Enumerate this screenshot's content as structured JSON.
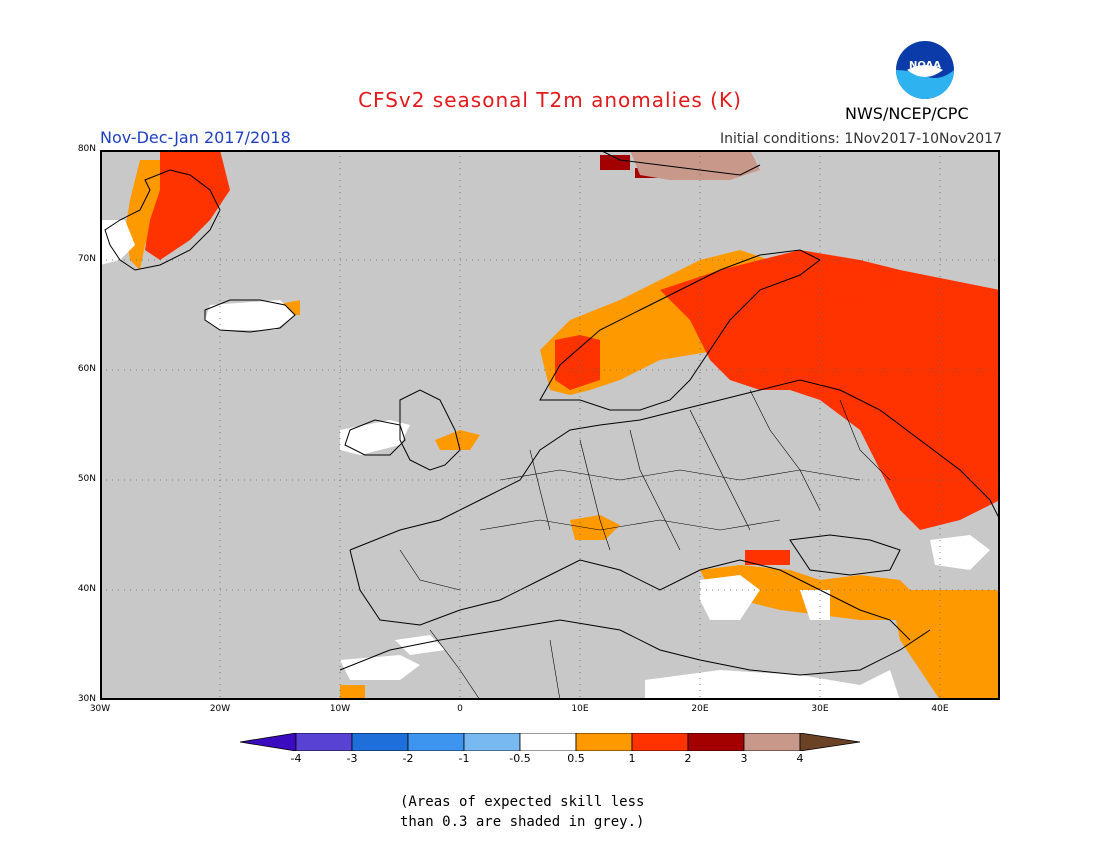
{
  "header": {
    "title": "CFSv2 seasonal T2m anomalies (K)",
    "season": "Nov-Dec-Jan 2017/2018",
    "initial_conditions": "Initial conditions: 1Nov2017-10Nov2017",
    "org": "NWS/NCEP/CPC",
    "logo_text": "NOAA"
  },
  "map": {
    "lon_range": [
      -30,
      45
    ],
    "lat_range": [
      30,
      80
    ],
    "lat_ticks": [
      "80N",
      "70N",
      "60N",
      "50N",
      "40N",
      "30N"
    ],
    "lon_ticks": [
      "30W",
      "20W",
      "10W",
      "0",
      "10E",
      "20E",
      "30E",
      "40E"
    ],
    "background_color": "#c8c8c8",
    "grid": true
  },
  "legend": {
    "labels": [
      "-4",
      "-3",
      "-2",
      "-1",
      "-0.5",
      "0.5",
      "1",
      "2",
      "3",
      "4"
    ],
    "colors": [
      "#3a0bbf",
      "#5842d4",
      "#1e6fd9",
      "#3d95f0",
      "#79b9f2",
      "#ffffff",
      "#ff9900",
      "#ff3300",
      "#a30000",
      "#c8998a",
      "#6b4226"
    ]
  },
  "note": {
    "line1": "(Areas of expected skill less",
    "line2": "than 0.3 are shaded in grey.)"
  }
}
